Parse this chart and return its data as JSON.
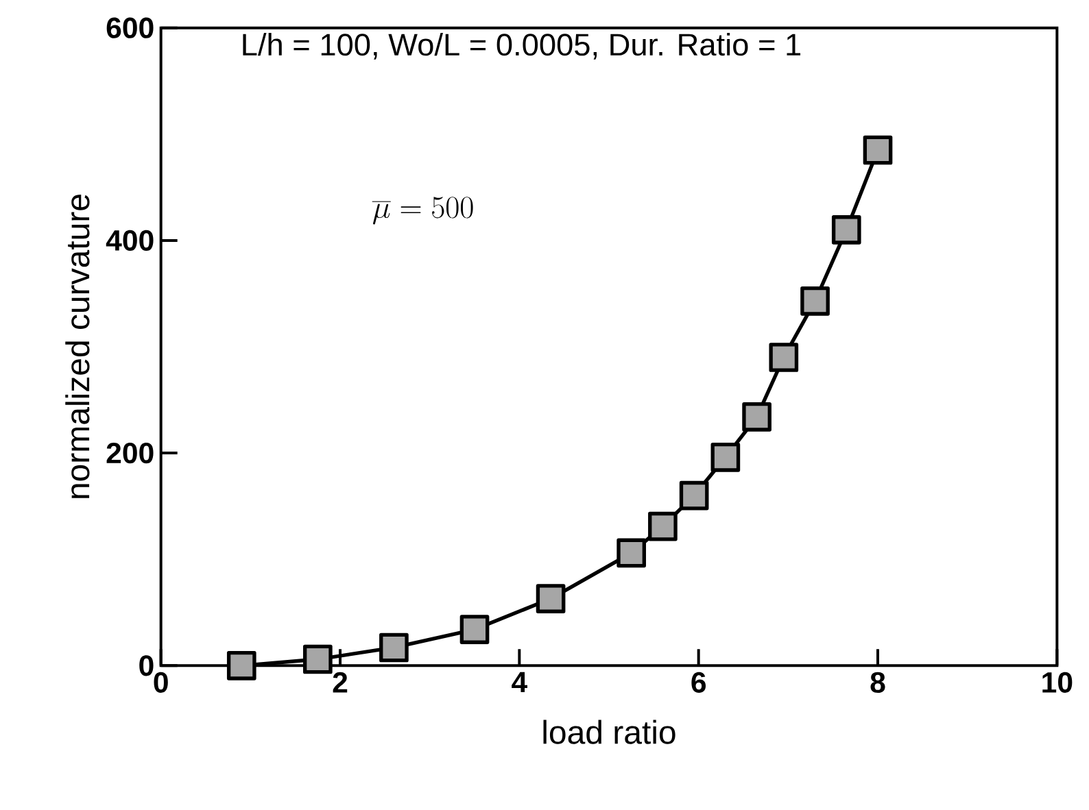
{
  "chart_data": {
    "type": "line",
    "xlabel": "load ratio",
    "ylabel": "normalized curvature",
    "x": [
      0.9,
      1.75,
      2.6,
      3.5,
      4.35,
      5.25,
      5.6,
      5.95,
      6.3,
      6.65,
      6.95,
      7.3,
      7.65,
      8.0
    ],
    "series": [
      {
        "color": "#000000",
        "values": [
          0,
          6,
          17,
          34,
          63,
          106,
          131,
          160,
          196,
          234,
          290,
          343,
          410,
          485
        ]
      }
    ],
    "xlim": [
      0,
      10
    ],
    "ylim": [
      0,
      600
    ],
    "xticks": [
      0,
      2,
      4,
      6,
      8,
      10
    ],
    "yticks": [
      0,
      200,
      400,
      600
    ],
    "marker": "square",
    "line_style": "solid",
    "annotations": [
      {
        "text": "L/h = 100, Wo/L = 0.0005, Dur. Ratio = 1"
      },
      {
        "text": "\\overline{\\mu} = 500"
      }
    ]
  }
}
